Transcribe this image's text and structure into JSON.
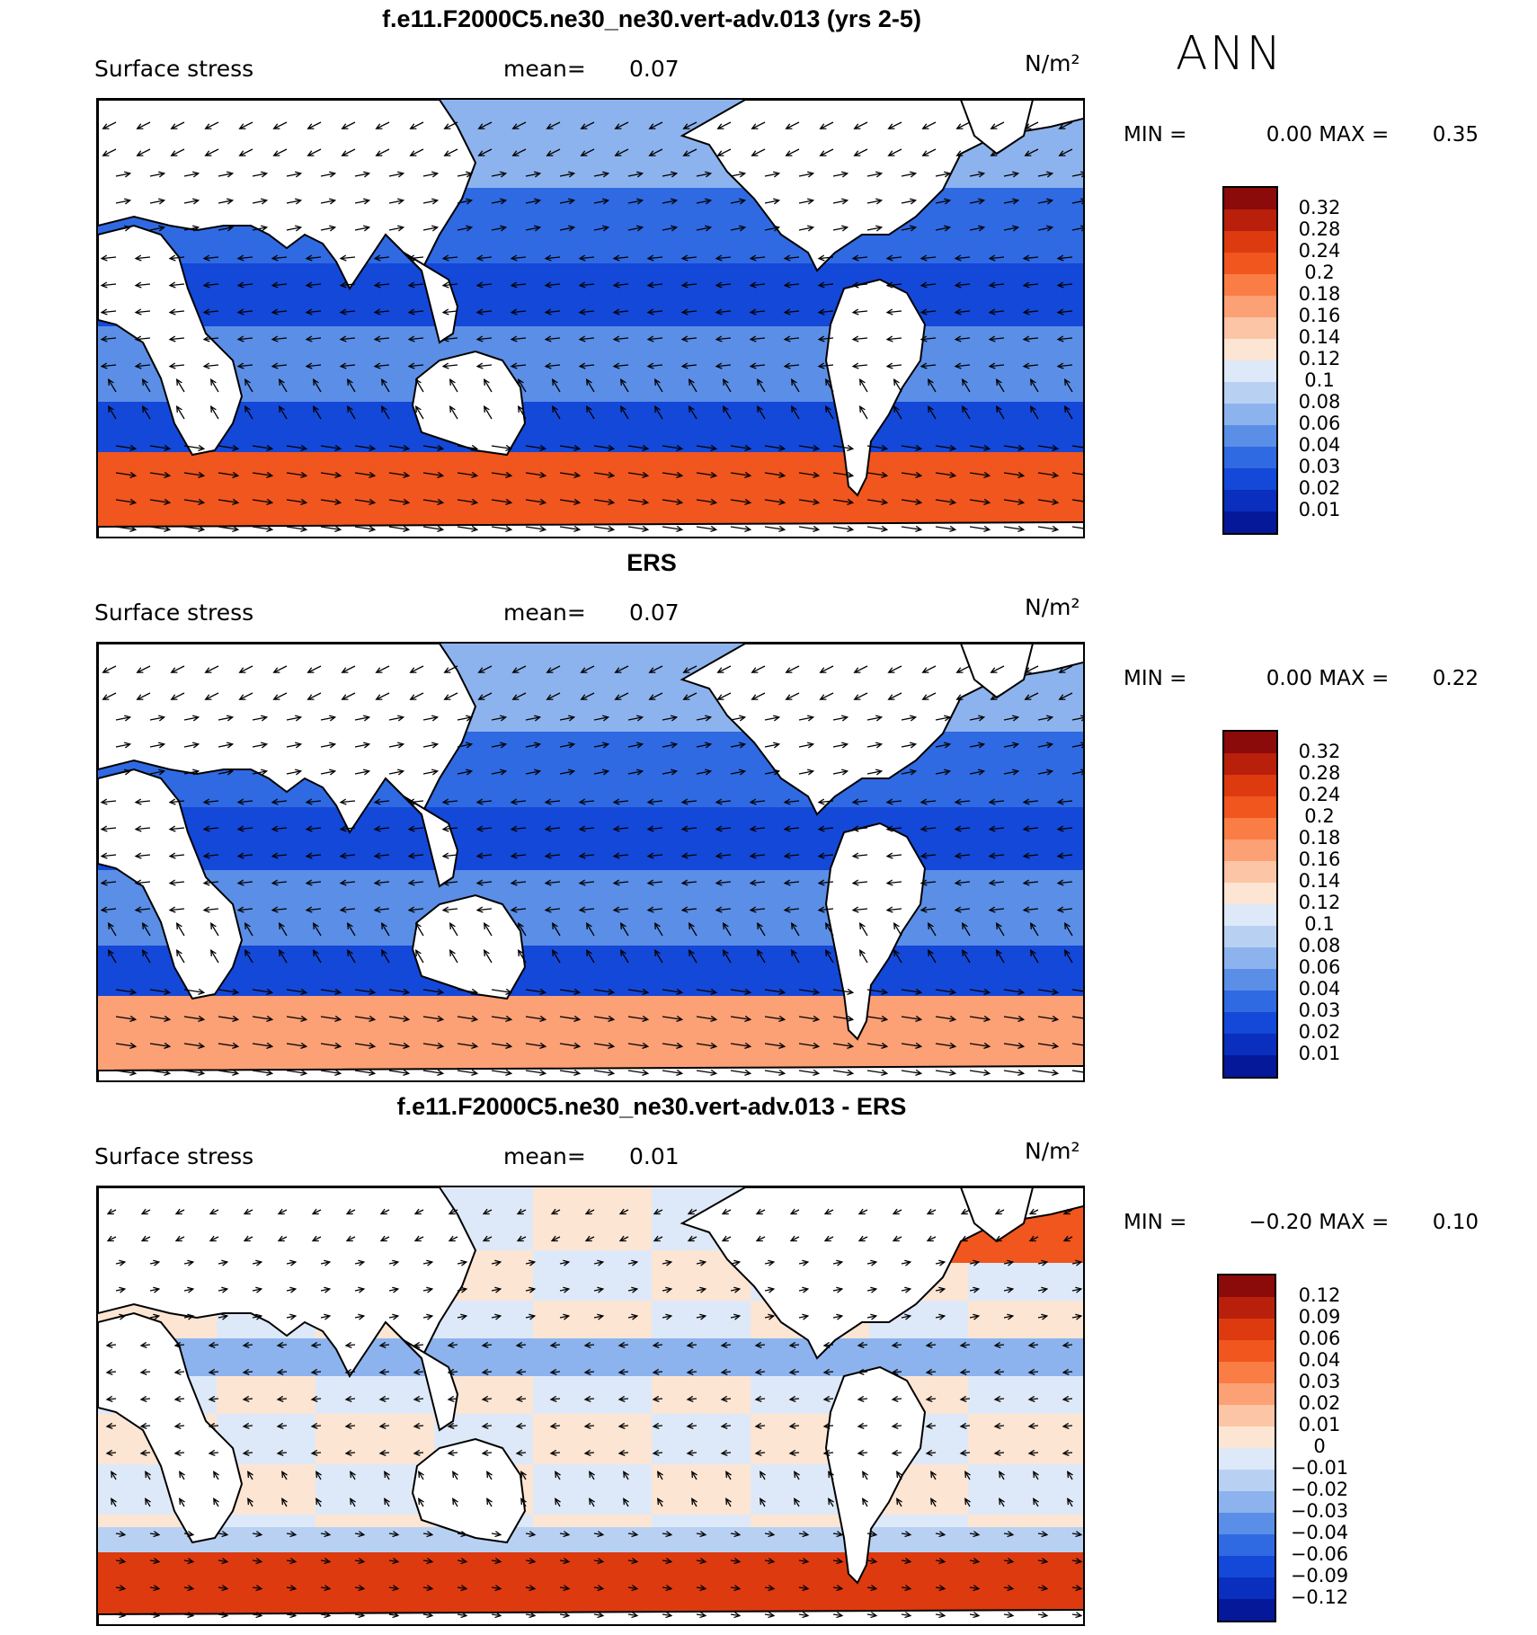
{
  "season": "ANN",
  "panels": [
    {
      "title": "f.e11.F2000C5.ne30_ne30.vert-adv.013 (yrs 2-5)",
      "variable": "Surface stress",
      "mean_label": "mean=",
      "mean_value": "0.07",
      "units": "N/m²",
      "min_label": "MIN =",
      "min_value": "0.00",
      "max_label": "MAX =",
      "max_value": "0.35",
      "field": "model"
    },
    {
      "title": "ERS",
      "variable": "Surface stress",
      "mean_label": "mean=",
      "mean_value": "0.07",
      "units": "N/m²",
      "min_label": "MIN =",
      "min_value": "0.00",
      "max_label": "MAX =",
      "max_value": "0.22",
      "field": "obs"
    },
    {
      "title": "f.e11.F2000C5.ne30_ne30.vert-adv.013 - ERS",
      "variable": "Surface stress",
      "mean_label": "mean=",
      "mean_value": "0.01",
      "units": "N/m²",
      "min_label": "MIN =",
      "min_value": "−0.20",
      "max_label": "MAX =",
      "max_value": "0.10",
      "field": "diff"
    }
  ],
  "colorbar_abs": {
    "labels": [
      "0.32",
      "0.28",
      "0.24",
      "0.2",
      "0.18",
      "0.16",
      "0.14",
      "0.12",
      "0.1",
      "0.08",
      "0.06",
      "0.04",
      "0.03",
      "0.02",
      "0.01"
    ],
    "colors": [
      "#8b0a0a",
      "#b8200c",
      "#de3a10",
      "#f0561e",
      "#fa7d45",
      "#fca076",
      "#fcc5a5",
      "#fde5d3",
      "#dde9f8",
      "#b8d1f3",
      "#8cb3ed",
      "#5b8ee6",
      "#2f6ae3",
      "#1448d8",
      "#0a2ebd",
      "#06189a"
    ]
  },
  "colorbar_diff": {
    "labels": [
      "0.12",
      "0.09",
      "0.06",
      "0.04",
      "0.03",
      "0.02",
      "0.01",
      "0",
      "−0.01",
      "−0.02",
      "−0.03",
      "−0.04",
      "−0.06",
      "−0.09",
      "−0.12"
    ],
    "colors": [
      "#8b0a0a",
      "#b8200c",
      "#de3a10",
      "#f0561e",
      "#fa7d45",
      "#fca076",
      "#fcc5a5",
      "#fde5d3",
      "#dde9f8",
      "#b8d1f3",
      "#8cb3ed",
      "#5b8ee6",
      "#2f6ae3",
      "#1448d8",
      "#0a2ebd",
      "#06189a"
    ]
  }
}
